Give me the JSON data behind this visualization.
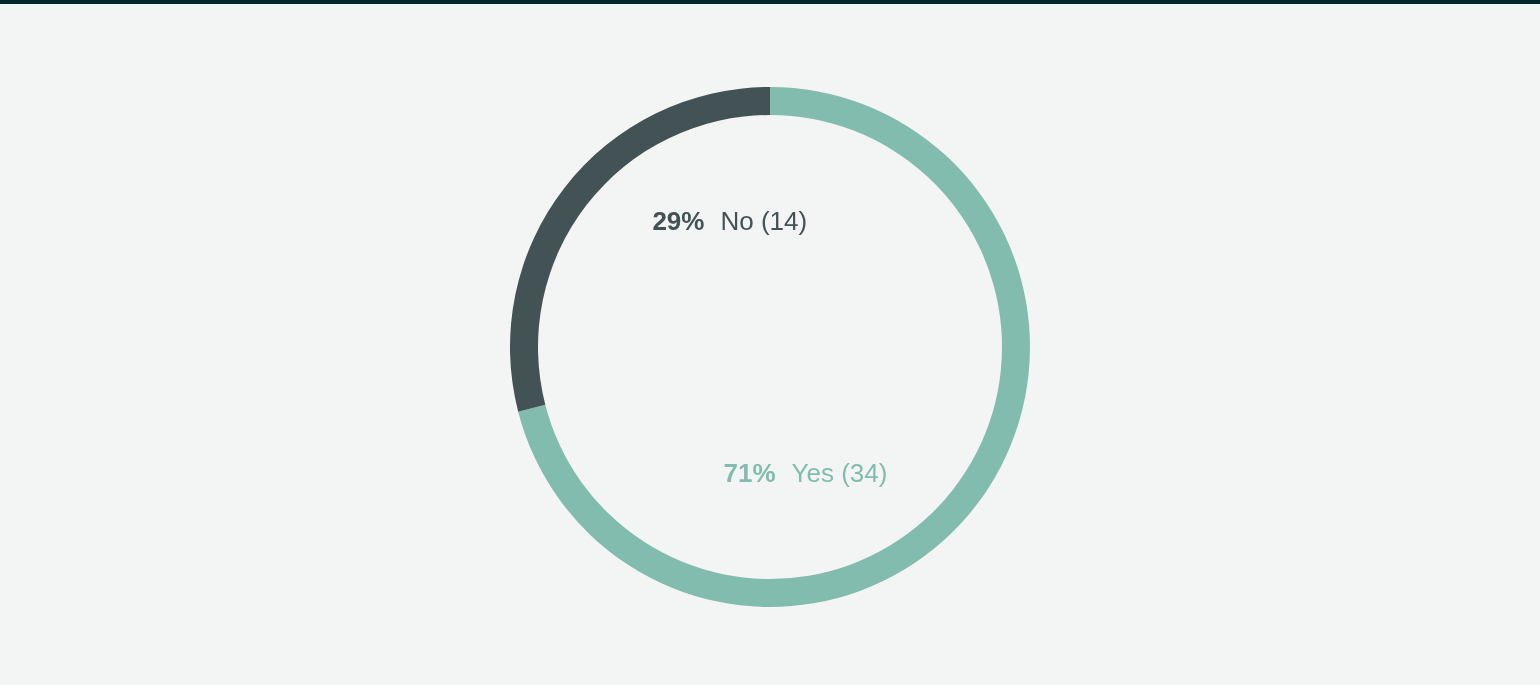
{
  "chart_data": {
    "type": "donut",
    "categories": [
      "Yes (34)",
      "No (14)"
    ],
    "values": [
      71,
      29
    ],
    "colors": [
      "#82bcae",
      "#435255"
    ],
    "value_labels": [
      "71%",
      "29%"
    ]
  }
}
